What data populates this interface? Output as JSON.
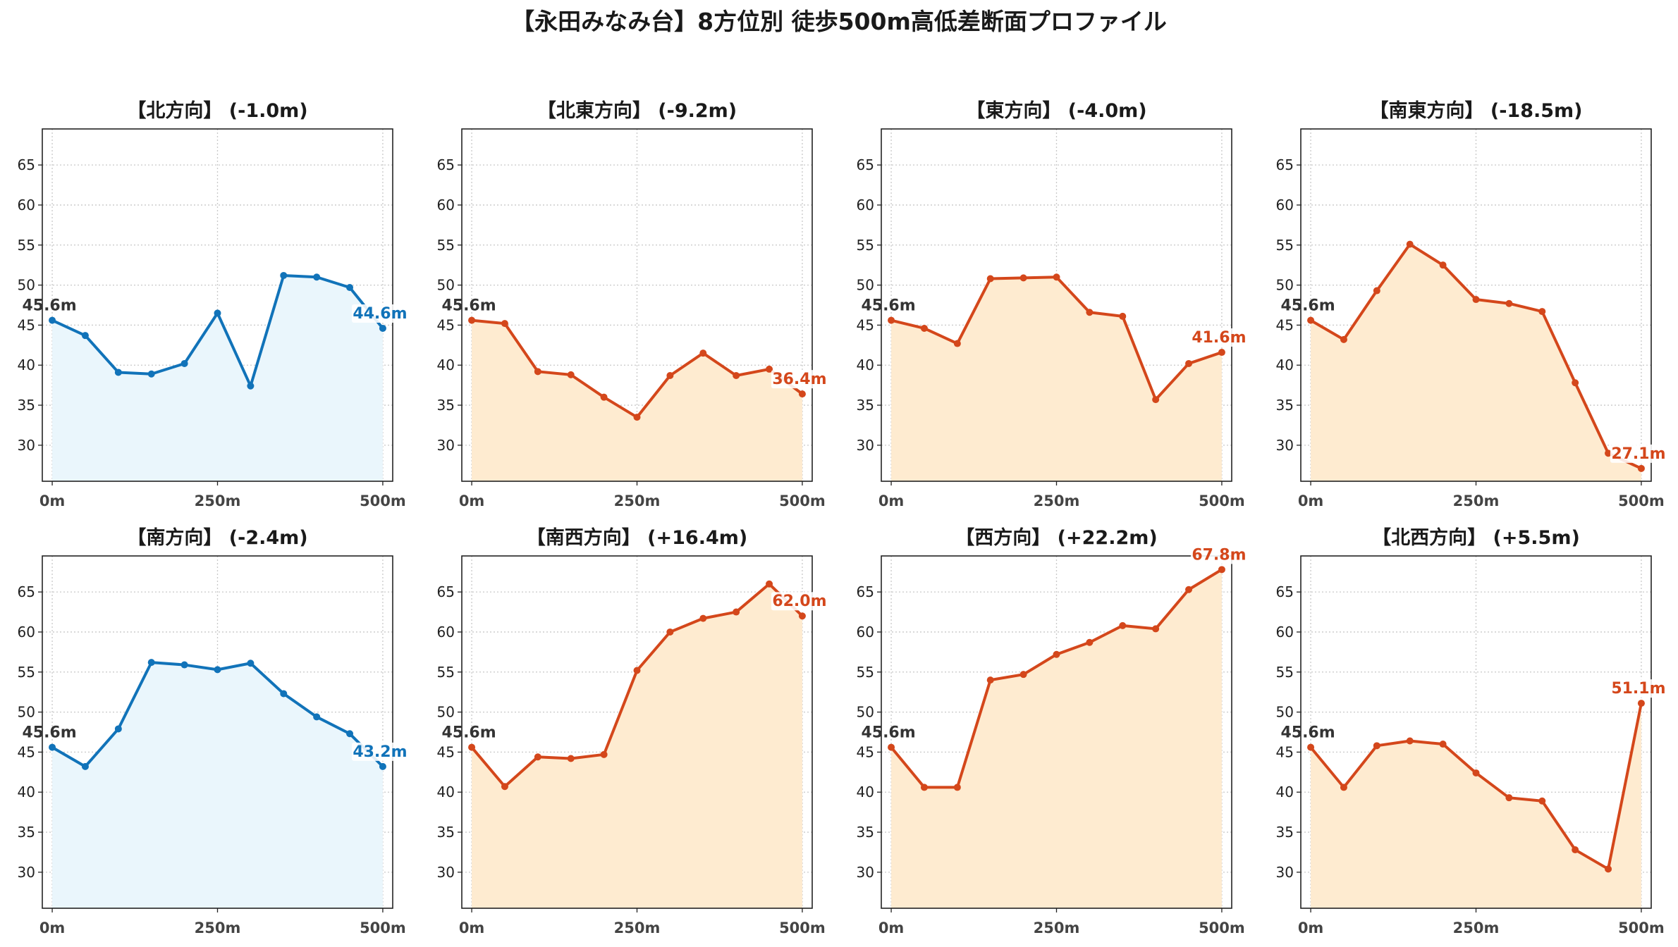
{
  "chart_title": "【永田みなみ台】8方位別 徒歩500m高低差断面プロファイル",
  "colors": {
    "down": "#1173b9",
    "down_fill": "#eaf6fc",
    "up": "#d4471b",
    "up_fill": "#feebd0",
    "start_label": "#333333"
  },
  "chart_data": [
    {
      "type": "area",
      "title": "【北方向】 (-1.0m)",
      "x": [
        0,
        50,
        100,
        150,
        200,
        250,
        300,
        350,
        400,
        450,
        500
      ],
      "values": [
        45.6,
        43.7,
        39.1,
        38.9,
        40.2,
        46.5,
        37.4,
        51.2,
        51.0,
        49.7,
        44.6
      ],
      "start_label": "45.6m",
      "end_label": "44.6m",
      "trend": "down",
      "x_ticks": [
        "0m",
        "250m",
        "500m"
      ],
      "y_ticks": [
        30,
        35,
        40,
        45,
        50,
        55,
        60,
        65
      ],
      "ylim": [
        25.5,
        69.5
      ],
      "xlim": [
        -15,
        515
      ],
      "grid": true
    },
    {
      "type": "area",
      "title": "【北東方向】 (-9.2m)",
      "x": [
        0,
        50,
        100,
        150,
        200,
        250,
        300,
        350,
        400,
        450,
        500
      ],
      "values": [
        45.6,
        45.2,
        39.2,
        38.8,
        36.0,
        33.5,
        38.7,
        41.5,
        38.7,
        39.5,
        36.4
      ],
      "start_label": "45.6m",
      "end_label": "36.4m",
      "trend": "up",
      "x_ticks": [
        "0m",
        "250m",
        "500m"
      ],
      "y_ticks": [
        30,
        35,
        40,
        45,
        50,
        55,
        60,
        65
      ],
      "ylim": [
        25.5,
        69.5
      ],
      "xlim": [
        -15,
        515
      ],
      "grid": true
    },
    {
      "type": "area",
      "title": "【東方向】 (-4.0m)",
      "x": [
        0,
        50,
        100,
        150,
        200,
        250,
        300,
        350,
        400,
        450,
        500
      ],
      "values": [
        45.6,
        44.6,
        42.7,
        50.8,
        50.9,
        51.0,
        46.6,
        46.1,
        35.7,
        40.2,
        41.6
      ],
      "start_label": "45.6m",
      "end_label": "41.6m",
      "trend": "up",
      "x_ticks": [
        "0m",
        "250m",
        "500m"
      ],
      "y_ticks": [
        30,
        35,
        40,
        45,
        50,
        55,
        60,
        65
      ],
      "ylim": [
        25.5,
        69.5
      ],
      "xlim": [
        -15,
        515
      ],
      "grid": true
    },
    {
      "type": "area",
      "title": "【南東方向】 (-18.5m)",
      "x": [
        0,
        50,
        100,
        150,
        200,
        250,
        300,
        350,
        400,
        450,
        500
      ],
      "values": [
        45.6,
        43.2,
        49.3,
        55.1,
        52.5,
        48.2,
        47.7,
        46.7,
        37.8,
        29.0,
        27.1
      ],
      "start_label": "45.6m",
      "end_label": "27.1m",
      "trend": "up",
      "x_ticks": [
        "0m",
        "250m",
        "500m"
      ],
      "y_ticks": [
        30,
        35,
        40,
        45,
        50,
        55,
        60,
        65
      ],
      "ylim": [
        25.5,
        69.5
      ],
      "xlim": [
        -15,
        515
      ],
      "grid": true
    },
    {
      "type": "area",
      "title": "【南方向】 (-2.4m)",
      "x": [
        0,
        50,
        100,
        150,
        200,
        250,
        300,
        350,
        400,
        450,
        500
      ],
      "values": [
        45.6,
        43.2,
        47.9,
        56.2,
        55.9,
        55.3,
        56.1,
        52.3,
        49.4,
        47.3,
        43.2
      ],
      "start_label": "45.6m",
      "end_label": "43.2m",
      "trend": "down",
      "x_ticks": [
        "0m",
        "250m",
        "500m"
      ],
      "y_ticks": [
        30,
        35,
        40,
        45,
        50,
        55,
        60,
        65
      ],
      "ylim": [
        25.5,
        69.5
      ],
      "xlim": [
        -15,
        515
      ],
      "grid": true
    },
    {
      "type": "area",
      "title": "【南西方向】 (+16.4m)",
      "x": [
        0,
        50,
        100,
        150,
        200,
        250,
        300,
        350,
        400,
        450,
        500
      ],
      "values": [
        45.6,
        40.7,
        44.4,
        44.2,
        44.7,
        55.2,
        60.0,
        61.7,
        62.5,
        66.0,
        62.0
      ],
      "start_label": "45.6m",
      "end_label": "62.0m",
      "trend": "up",
      "x_ticks": [
        "0m",
        "250m",
        "500m"
      ],
      "y_ticks": [
        30,
        35,
        40,
        45,
        50,
        55,
        60,
        65
      ],
      "ylim": [
        25.5,
        69.5
      ],
      "xlim": [
        -15,
        515
      ],
      "grid": true
    },
    {
      "type": "area",
      "title": "【西方向】 (+22.2m)",
      "x": [
        0,
        50,
        100,
        150,
        200,
        250,
        300,
        350,
        400,
        450,
        500
      ],
      "values": [
        45.6,
        40.6,
        40.6,
        54.0,
        54.7,
        57.2,
        58.7,
        60.8,
        60.4,
        65.3,
        67.8
      ],
      "start_label": "45.6m",
      "end_label": "67.8m",
      "trend": "up",
      "x_ticks": [
        "0m",
        "250m",
        "500m"
      ],
      "y_ticks": [
        30,
        35,
        40,
        45,
        50,
        55,
        60,
        65
      ],
      "ylim": [
        25.5,
        69.5
      ],
      "xlim": [
        -15,
        515
      ],
      "grid": true
    },
    {
      "type": "area",
      "title": "【北西方向】 (+5.5m)",
      "x": [
        0,
        50,
        100,
        150,
        200,
        250,
        300,
        350,
        400,
        450,
        500
      ],
      "values": [
        45.6,
        40.6,
        45.8,
        46.4,
        46.0,
        42.4,
        39.3,
        38.9,
        32.8,
        30.4,
        51.1
      ],
      "start_label": "45.6m",
      "end_label": "51.1m",
      "trend": "up",
      "x_ticks": [
        "0m",
        "250m",
        "500m"
      ],
      "y_ticks": [
        30,
        35,
        40,
        45,
        50,
        55,
        60,
        65
      ],
      "ylim": [
        25.5,
        69.5
      ],
      "xlim": [
        -15,
        515
      ],
      "grid": true
    }
  ]
}
